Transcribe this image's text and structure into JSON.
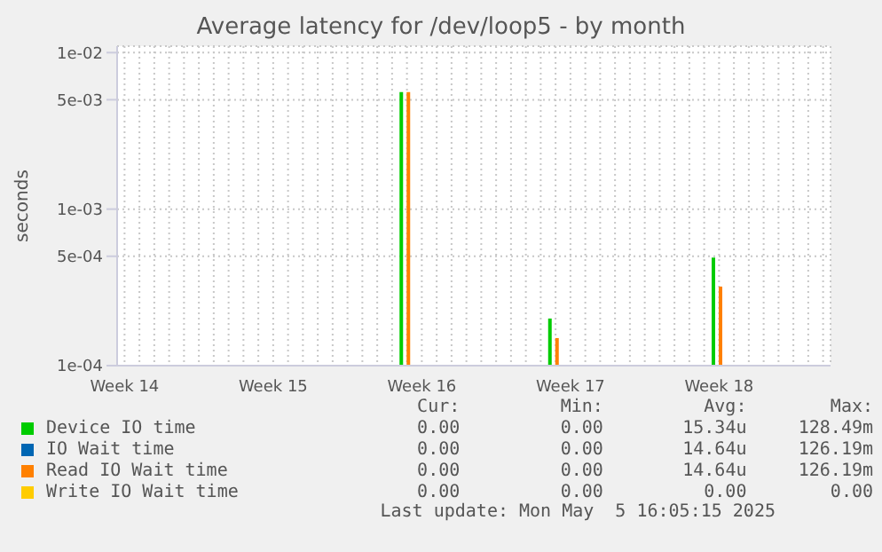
{
  "chart_data": {
    "type": "bar",
    "title": "Average latency for /dev/loop5 - by month",
    "ylabel": "seconds",
    "categories": [
      "Week 14",
      null,
      null,
      null,
      null,
      null,
      null,
      null,
      null,
      null,
      "Week 15",
      null,
      null,
      null,
      null,
      null,
      null,
      null,
      null,
      null,
      "Week 16",
      null,
      null,
      null,
      null,
      null,
      null,
      null,
      null,
      null,
      "Week 17",
      null,
      null,
      null,
      null,
      null,
      null,
      null,
      null,
      null,
      "Week 18",
      null,
      null,
      null,
      null,
      null,
      null,
      null
    ],
    "series": [
      {
        "name": "Device IO time",
        "color": "#00cc00",
        "values": [
          null,
          null,
          null,
          null,
          null,
          null,
          null,
          null,
          null,
          null,
          null,
          null,
          null,
          null,
          null,
          null,
          null,
          null,
          null,
          0.0056,
          null,
          null,
          null,
          null,
          null,
          null,
          null,
          null,
          null,
          0.0002,
          null,
          null,
          null,
          null,
          null,
          null,
          null,
          null,
          null,
          null,
          0.00049,
          null,
          null,
          null,
          null,
          null,
          null,
          null
        ]
      },
      {
        "name": "IO Wait time",
        "color": "#0066b3",
        "values": [
          null,
          null,
          null,
          null,
          null,
          null,
          null,
          null,
          null,
          null,
          null,
          null,
          null,
          null,
          null,
          null,
          null,
          null,
          null,
          null,
          null,
          null,
          null,
          null,
          null,
          null,
          null,
          null,
          null,
          null,
          null,
          null,
          null,
          null,
          null,
          null,
          null,
          null,
          null,
          null,
          null,
          null,
          null,
          null,
          null,
          null,
          null,
          null
        ]
      },
      {
        "name": "Read IO Wait time",
        "color": "#ff8000",
        "values": [
          null,
          null,
          null,
          null,
          null,
          null,
          null,
          null,
          null,
          null,
          null,
          null,
          null,
          null,
          null,
          null,
          null,
          null,
          null,
          0.0056,
          null,
          null,
          null,
          null,
          null,
          null,
          null,
          null,
          null,
          0.00015,
          null,
          null,
          null,
          null,
          null,
          null,
          null,
          null,
          null,
          null,
          0.00032,
          null,
          null,
          null,
          null,
          null,
          null,
          null
        ]
      },
      {
        "name": "Write IO Wait time",
        "color": "#ffcc00",
        "values": [
          null,
          null,
          null,
          null,
          null,
          null,
          null,
          null,
          null,
          null,
          null,
          null,
          null,
          null,
          null,
          null,
          null,
          null,
          null,
          null,
          null,
          null,
          null,
          null,
          null,
          null,
          null,
          null,
          null,
          null,
          null,
          null,
          null,
          null,
          null,
          null,
          null,
          null,
          null,
          null,
          null,
          null,
          null,
          null,
          null,
          null,
          null,
          null
        ]
      }
    ],
    "log": "y",
    "ylim": [
      0.0001,
      0.011
    ],
    "yticks": [
      {
        "value": 0.0001,
        "label": "1e-04"
      },
      {
        "value": 0.0005,
        "label": "5e-04"
      },
      {
        "value": 0.001,
        "label": "1e-03"
      },
      {
        "value": 0.005,
        "label": "5e-03"
      },
      {
        "value": 0.01,
        "label": "1e-02"
      }
    ],
    "grid": true,
    "legend": "bottom",
    "annotations": [
      "Cur:",
      "Min:",
      "Avg:",
      "Max:",
      "0.00",
      "0.00",
      "15.34u",
      "128.49m",
      "0.00",
      "0.00",
      "14.64u",
      "126.19m",
      "0.00",
      "0.00",
      "14.64u",
      "126.19m",
      "0.00",
      "0.00",
      "0.00",
      "0.00",
      "Last update: Mon May  5 16:05:15 2025"
    ]
  }
}
